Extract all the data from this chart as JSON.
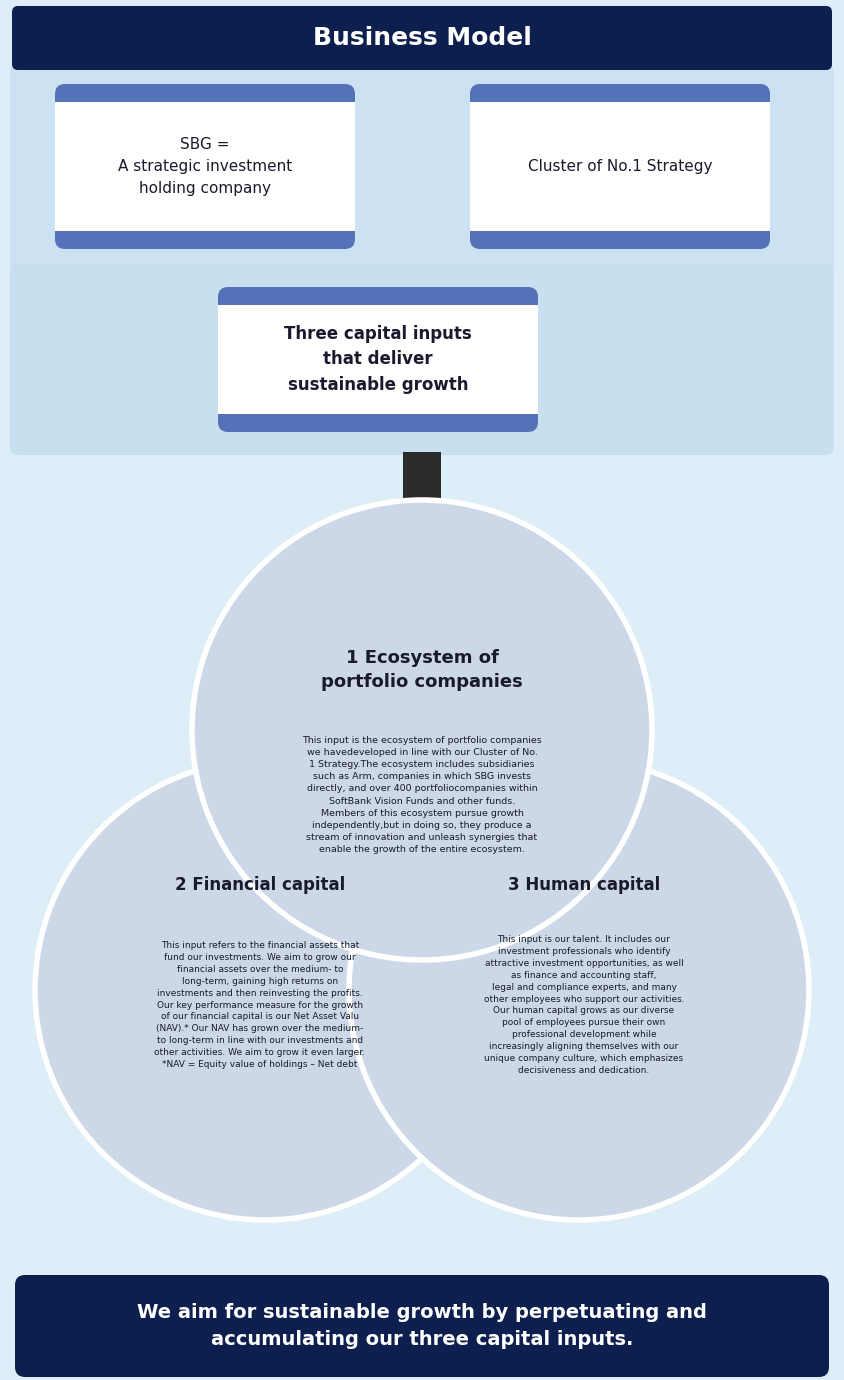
{
  "title": "Business Model",
  "title_bg": "#0d1f4e",
  "title_color": "#ffffff",
  "page_bg": "#ddeef8",
  "upper_panel_bg": "#cce2f2",
  "lower_panel_bg": "#c8dff0",
  "box_header_color": "#5572b8",
  "box_bg": "#ffffff",
  "arrow_color": "#2b2b2b",
  "box1_title": "SBG =\nA strategic investment\nholding company",
  "box2_title": "Cluster of No.1 Strategy",
  "box3_title": "Three capital inputs\nthat deliver\nsustainable growth",
  "circle1_title": "1 Ecosystem of\nportfolio companies",
  "circle1_text": "This input is the ecosystem of portfolio companies\nwe havedeveloped in line with our Cluster of No.\n1 Strategy.The ecosystem includes subsidiaries\nsuch as Arm, companies in which SBG invests\ndirectly, and over 400 portfoliocompanies within\nSoftBank Vision Funds and other funds.\nMembers of this ecosystem pursue growth\nindependently,but in doing so, they produce a\nstream of innovation and unleash synergies that\nenable the growth of the entire ecosystem.",
  "circle2_title": "2 Financial capital",
  "circle2_text": "This input refers to the financial assets that\nfund our investments. We aim to grow our\nfinancial assets over the medium- to\nlong-term, gaining high returns on\ninvestments and then reinvesting the profits.\nOur key performance measure for the growth\nof our financial capital is our Net Asset Valu\n(NAV).* Our NAV has grown over the medium-\nto long-term in line with our investments and\nother activities. We aim to grow it even larger.\n*NAV = Equity value of holdings – Net debt",
  "circle3_title": "3 Human capital",
  "circle3_text": "This input is our talent. It includes our\ninvestment professionals who identify\nattractive investment opportunities, as well\nas finance and accounting staff,\nlegal and compliance experts, and many\nother employees who support our activities.\nOur human capital grows as our diverse\npool of employees pursue their own\nprofessional development while\nincreasingly aligning themselves with our\nunique company culture, which emphasizes\ndecisiveness and dedication.",
  "footer_text": "We aim for sustainable growth by perpetuating and\naccumulating our three capital inputs.",
  "footer_bg": "#0d1f4e",
  "footer_color": "#ffffff",
  "circle_fill": "#ccd8e8",
  "circle_edge": "#e8eef6",
  "text_dark": "#1a1a2e"
}
